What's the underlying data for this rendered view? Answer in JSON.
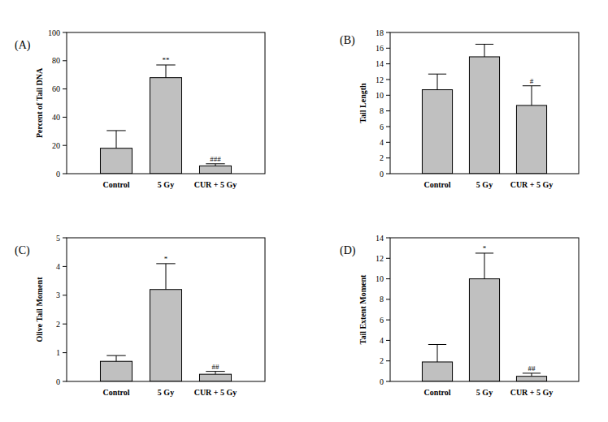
{
  "chart_data": [
    {
      "type": "bar",
      "title": "(A)",
      "y_label": "Percent of Tail DNA",
      "categories": [
        "Control",
        "5 Gy",
        "CUR + 5 Gy"
      ],
      "values": [
        18,
        68,
        5.5
      ],
      "errors": [
        12.5,
        9,
        1.5
      ],
      "significance": [
        null,
        "**",
        "###"
      ],
      "color": "#c0c0c0",
      "ylim": [
        0,
        100
      ],
      "yticks": [
        0,
        20,
        40,
        60,
        80,
        100
      ]
    },
    {
      "type": "bar",
      "title": "(B)",
      "y_label": "Tail Length",
      "categories": [
        "Control",
        "5 Gy",
        "CUR + 5 Gy"
      ],
      "values": [
        10.7,
        14.9,
        8.7
      ],
      "errors": [
        2,
        1.6,
        2.5
      ],
      "significance": [
        null,
        null,
        "#"
      ],
      "color": "#c0c0c0",
      "ylim": [
        0,
        18
      ],
      "yticks": [
        0,
        2,
        4,
        6,
        8,
        10,
        12,
        14,
        16,
        18
      ]
    },
    {
      "type": "bar",
      "title": "(C)",
      "y_label": "Olive Tail Moment",
      "categories": [
        "Control",
        "5 Gy",
        "CUR + 5 Gy"
      ],
      "values": [
        0.7,
        3.2,
        0.25
      ],
      "errors": [
        0.2,
        0.9,
        0.1
      ],
      "significance": [
        null,
        "*",
        "##"
      ],
      "color": "#c0c0c0",
      "ylim": [
        0,
        5
      ],
      "yticks": [
        0,
        1,
        2,
        3,
        4,
        5
      ]
    },
    {
      "type": "bar",
      "title": "(D)",
      "y_label": "Tail Extent Moment",
      "categories": [
        "Control",
        "5 Gy",
        "CUR + 5 Gy"
      ],
      "values": [
        1.9,
        10,
        0.5
      ],
      "errors": [
        1.7,
        2.5,
        0.3
      ],
      "significance": [
        null,
        "*",
        "##"
      ],
      "color": "#c0c0c0",
      "ylim": [
        0,
        14
      ],
      "yticks": [
        0,
        2,
        4,
        6,
        8,
        10,
        12,
        14
      ]
    }
  ]
}
